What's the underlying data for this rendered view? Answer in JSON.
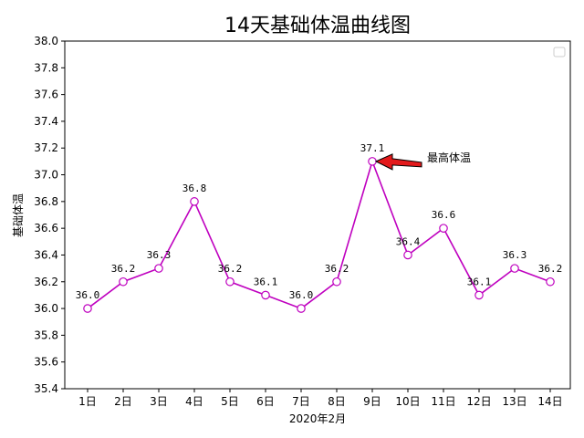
{
  "chart_data": {
    "type": "line",
    "title": "14天基础体温曲线图",
    "xlabel": "2020年2月",
    "ylabel": "基础体温",
    "categories": [
      "1日",
      "2日",
      "3日",
      "4日",
      "5日",
      "6日",
      "7日",
      "8日",
      "9日",
      "10日",
      "11日",
      "12日",
      "13日",
      "14日"
    ],
    "series": [
      {
        "values": [
          36.0,
          36.2,
          36.3,
          36.8,
          36.2,
          36.1,
          36.0,
          36.2,
          37.1,
          36.4,
          36.6,
          36.1,
          36.3,
          36.2
        ]
      }
    ],
    "data_labels": [
      "36.0",
      "36.2",
      "36.3",
      "36.8",
      "36.2",
      "36.1",
      "36.0",
      "36.2",
      "37.1",
      "36.4",
      "36.6",
      "36.1",
      "36.3",
      "36.2"
    ],
    "ylim": [
      35.4,
      38.0
    ],
    "yticks": [
      35.4,
      35.6,
      35.8,
      36.0,
      36.2,
      36.4,
      36.6,
      36.8,
      37.0,
      37.2,
      37.4,
      37.6,
      37.8,
      38.0
    ],
    "ytick_labels": [
      "35.4",
      "35.6",
      "35.8",
      "36.0",
      "36.2",
      "36.4",
      "36.6",
      "36.8",
      "37.0",
      "37.2",
      "37.4",
      "37.6",
      "37.8",
      "38.0"
    ],
    "grid": false,
    "legend": "top-right (empty)",
    "line_color": "#bf00bf",
    "marker_fill": "#ffffff",
    "annotation": {
      "text": "最高体温",
      "category": "9日",
      "value": 37.1,
      "arrow_color": "#e31a1c"
    }
  }
}
